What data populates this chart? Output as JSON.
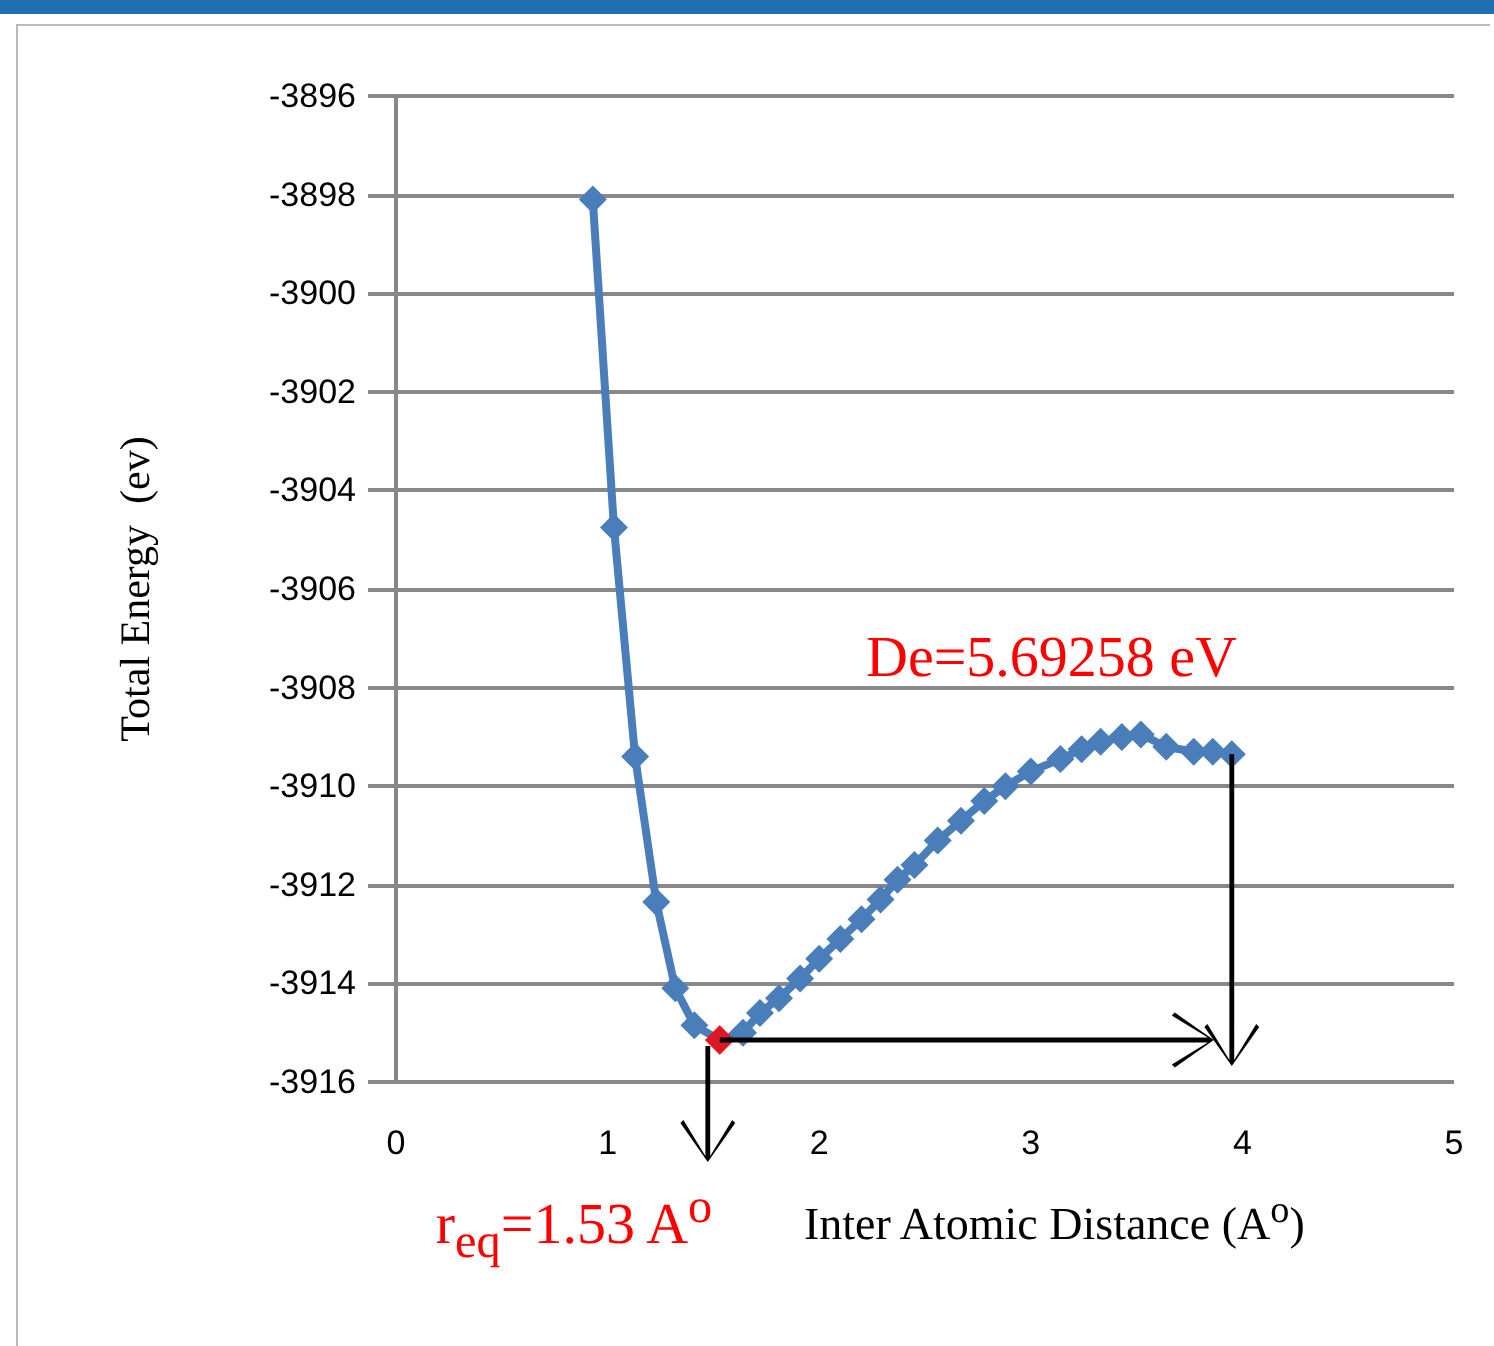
{
  "chart_data": {
    "type": "line",
    "xlabel": "Inter Atomic Distance  (A$^{o}$)",
    "ylabel": "Total Energy  (ev)",
    "xlim": [
      0,
      5
    ],
    "xticks": [
      0,
      1,
      2,
      3,
      4,
      5
    ],
    "ylim": [
      -3916,
      -3896
    ],
    "yticks": [
      -3916,
      -3914,
      -3912,
      -3910,
      -3908,
      -3906,
      -3904,
      -3902,
      -3900,
      -3898,
      -3896
    ],
    "grid": "y",
    "marker": "diamond",
    "line_style": "solid",
    "series": [
      {
        "color": "#4a7ebb",
        "x": [
          0.93,
          1.03,
          1.13,
          1.23,
          1.32,
          1.41,
          1.53,
          1.64,
          1.72,
          1.81,
          1.91,
          2.0,
          2.1,
          2.2,
          2.29,
          2.37,
          2.45,
          2.56,
          2.67,
          2.78,
          2.88,
          3.0,
          3.14,
          3.24,
          3.33,
          3.43,
          3.52,
          3.64,
          3.77,
          3.86,
          3.95
        ],
        "values": [
          -3898.1,
          -3904.75,
          -3909.4,
          -3912.35,
          -3914.1,
          -3914.85,
          -3915.15,
          -3915.0,
          -3914.6,
          -3914.3,
          -3913.9,
          -3913.5,
          -3913.1,
          -3912.7,
          -3912.3,
          -3911.9,
          -3911.6,
          -3911.1,
          -3910.7,
          -3910.3,
          -3910.0,
          -3909.7,
          -3909.45,
          -3909.25,
          -3909.1,
          -3909.0,
          -3908.95,
          -3909.2,
          -3909.3,
          -3909.3,
          -3909.35
        ]
      },
      {
        "type": "scatter",
        "color": "#ff0000",
        "x": [
          1.53
        ],
        "values": [
          -3915.15
        ]
      }
    ],
    "annotations": [
      "De=5.69258 eV",
      {
        "text": "r$_{eq}$=1.53 A$^{o}$",
        "x": 1.53,
        "y": -3915.15
      }
    ]
  }
}
